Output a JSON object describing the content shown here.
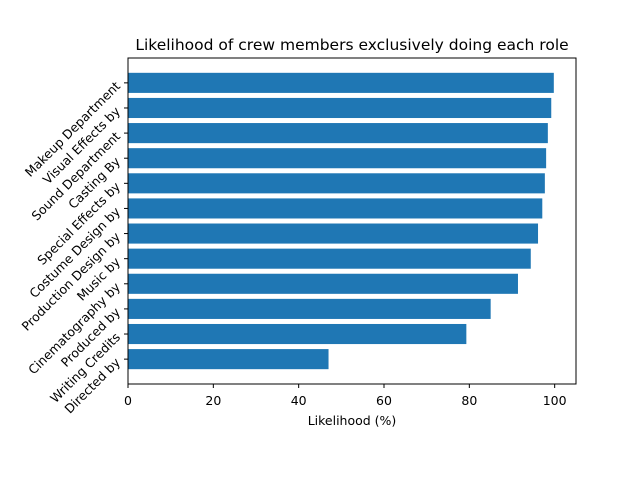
{
  "chart_data": {
    "type": "bar",
    "orientation": "horizontal",
    "title": "Likelihood of crew members exclusively doing each role",
    "xlabel": "Likelihood (%)",
    "ylabel": "",
    "xlim": [
      0,
      105
    ],
    "xticks": [
      0,
      20,
      40,
      60,
      80,
      100
    ],
    "categories": [
      "Directed by",
      "Writing Credits",
      "Produced by",
      "Cinematography by",
      "Music by",
      "Production Design by",
      "Costume Design by",
      "Special Effects by",
      "Casting By",
      "Sound Department",
      "Visual Effects by",
      "Makeup Department"
    ],
    "values": [
      47.0,
      79.3,
      85.0,
      91.4,
      94.4,
      96.1,
      97.1,
      97.7,
      98.0,
      98.4,
      99.2,
      99.8
    ],
    "bar_color": "#1f77b4",
    "grid": false,
    "legend": "none"
  }
}
